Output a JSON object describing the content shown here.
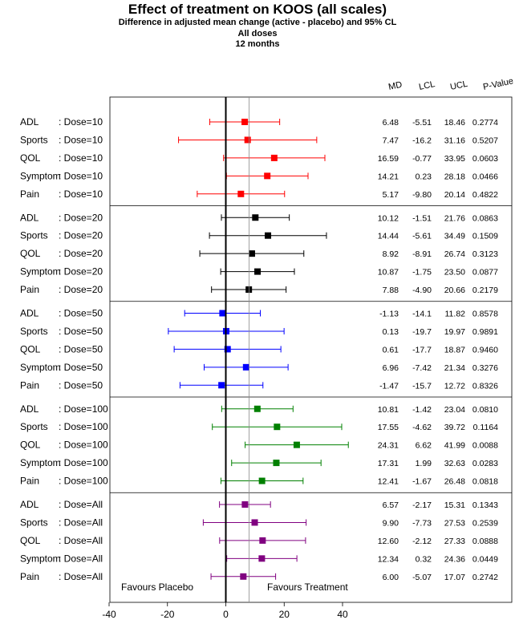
{
  "chart_data": {
    "type": "forest",
    "title": "Effect of treatment on KOOS (all scales)",
    "subtitle": "Difference in adjusted mean change (active - placebo) and 95% CL",
    "subtitle_line2": "All doses",
    "subtitle_line3": "12 months",
    "column_headers": [
      "MD",
      "LCL",
      "UCL",
      "P-Value"
    ],
    "xlim": [
      -40,
      40
    ],
    "x_ticks": [
      "-40",
      "-20",
      "0",
      "20",
      "40"
    ],
    "reference_line_x": 0,
    "overall_effect_line_x": 8,
    "annotation_left": "Favours Placebo",
    "annotation_right": "Favours Treatment",
    "groups": [
      {
        "dose_label": ": Dose=10",
        "color": "#ff0000",
        "rows": [
          {
            "scale": "ADL",
            "md": 6.48,
            "lcl": -5.51,
            "ucl": 18.46,
            "md_text": "6.48",
            "lcl_text": "-5.51",
            "ucl_text": "18.46",
            "p_text": "0.2774"
          },
          {
            "scale": "Sports",
            "md": 7.47,
            "lcl": -16.2,
            "ucl": 31.16,
            "md_text": "7.47",
            "lcl_text": "-16.2",
            "ucl_text": "31.16",
            "p_text": "0.5207"
          },
          {
            "scale": "QOL",
            "md": 16.59,
            "lcl": -0.77,
            "ucl": 33.95,
            "md_text": "16.59",
            "lcl_text": "-0.77",
            "ucl_text": "33.95",
            "p_text": "0.0603"
          },
          {
            "scale": "Symptom",
            "md": 14.21,
            "lcl": 0.23,
            "ucl": 28.18,
            "md_text": "14.21",
            "lcl_text": "0.23",
            "ucl_text": "28.18",
            "p_text": "0.0466"
          },
          {
            "scale": "Pain",
            "md": 5.17,
            "lcl": -9.8,
            "ucl": 20.14,
            "md_text": "5.17",
            "lcl_text": "-9.80",
            "ucl_text": "20.14",
            "p_text": "0.4822"
          }
        ]
      },
      {
        "dose_label": ": Dose=20",
        "color": "#000000",
        "rows": [
          {
            "scale": "ADL",
            "md": 10.12,
            "lcl": -1.51,
            "ucl": 21.76,
            "md_text": "10.12",
            "lcl_text": "-1.51",
            "ucl_text": "21.76",
            "p_text": "0.0863"
          },
          {
            "scale": "Sports",
            "md": 14.44,
            "lcl": -5.61,
            "ucl": 34.49,
            "md_text": "14.44",
            "lcl_text": "-5.61",
            "ucl_text": "34.49",
            "p_text": "0.1509"
          },
          {
            "scale": "QOL",
            "md": 8.92,
            "lcl": -8.91,
            "ucl": 26.74,
            "md_text": "8.92",
            "lcl_text": "-8.91",
            "ucl_text": "26.74",
            "p_text": "0.3123"
          },
          {
            "scale": "Symptom",
            "md": 10.87,
            "lcl": -1.75,
            "ucl": 23.5,
            "md_text": "10.87",
            "lcl_text": "-1.75",
            "ucl_text": "23.50",
            "p_text": "0.0877"
          },
          {
            "scale": "Pain",
            "md": 7.88,
            "lcl": -4.9,
            "ucl": 20.66,
            "md_text": "7.88",
            "lcl_text": "-4.90",
            "ucl_text": "20.66",
            "p_text": "0.2179"
          }
        ]
      },
      {
        "dose_label": ": Dose=50",
        "color": "#0000ff",
        "rows": [
          {
            "scale": "ADL",
            "md": -1.13,
            "lcl": -14.1,
            "ucl": 11.82,
            "md_text": "-1.13",
            "lcl_text": "-14.1",
            "ucl_text": "11.82",
            "p_text": "0.8578"
          },
          {
            "scale": "Sports",
            "md": 0.13,
            "lcl": -19.7,
            "ucl": 19.97,
            "md_text": "0.13",
            "lcl_text": "-19.7",
            "ucl_text": "19.97",
            "p_text": "0.9891"
          },
          {
            "scale": "QOL",
            "md": 0.61,
            "lcl": -17.7,
            "ucl": 18.87,
            "md_text": "0.61",
            "lcl_text": "-17.7",
            "ucl_text": "18.87",
            "p_text": "0.9460"
          },
          {
            "scale": "Symptom",
            "md": 6.96,
            "lcl": -7.42,
            "ucl": 21.34,
            "md_text": "6.96",
            "lcl_text": "-7.42",
            "ucl_text": "21.34",
            "p_text": "0.3276"
          },
          {
            "scale": "Pain",
            "md": -1.47,
            "lcl": -15.7,
            "ucl": 12.72,
            "md_text": "-1.47",
            "lcl_text": "-15.7",
            "ucl_text": "12.72",
            "p_text": "0.8326"
          }
        ]
      },
      {
        "dose_label": ": Dose=100",
        "color": "#008000",
        "rows": [
          {
            "scale": "ADL",
            "md": 10.81,
            "lcl": -1.42,
            "ucl": 23.04,
            "md_text": "10.81",
            "lcl_text": "-1.42",
            "ucl_text": "23.04",
            "p_text": "0.0810"
          },
          {
            "scale": "Sports",
            "md": 17.55,
            "lcl": -4.62,
            "ucl": 39.72,
            "md_text": "17.55",
            "lcl_text": "-4.62",
            "ucl_text": "39.72",
            "p_text": "0.1164"
          },
          {
            "scale": "QOL",
            "md": 24.31,
            "lcl": 6.62,
            "ucl": 41.99,
            "md_text": "24.31",
            "lcl_text": "6.62",
            "ucl_text": "41.99",
            "p_text": "0.0088"
          },
          {
            "scale": "Symptom",
            "md": 17.31,
            "lcl": 1.99,
            "ucl": 32.63,
            "md_text": "17.31",
            "lcl_text": "1.99",
            "ucl_text": "32.63",
            "p_text": "0.0283"
          },
          {
            "scale": "Pain",
            "md": 12.41,
            "lcl": -1.67,
            "ucl": 26.48,
            "md_text": "12.41",
            "lcl_text": "-1.67",
            "ucl_text": "26.48",
            "p_text": "0.0818"
          }
        ]
      },
      {
        "dose_label": ": Dose=All",
        "color": "#800080",
        "rows": [
          {
            "scale": "ADL",
            "md": 6.57,
            "lcl": -2.17,
            "ucl": 15.31,
            "md_text": "6.57",
            "lcl_text": "-2.17",
            "ucl_text": "15.31",
            "p_text": "0.1343"
          },
          {
            "scale": "Sports",
            "md": 9.9,
            "lcl": -7.73,
            "ucl": 27.53,
            "md_text": "9.90",
            "lcl_text": "-7.73",
            "ucl_text": "27.53",
            "p_text": "0.2539"
          },
          {
            "scale": "QOL",
            "md": 12.6,
            "lcl": -2.12,
            "ucl": 27.33,
            "md_text": "12.60",
            "lcl_text": "-2.12",
            "ucl_text": "27.33",
            "p_text": "0.0888"
          },
          {
            "scale": "Symptom",
            "md": 12.34,
            "lcl": 0.32,
            "ucl": 24.36,
            "md_text": "12.34",
            "lcl_text": "0.32",
            "ucl_text": "24.36",
            "p_text": "0.0449"
          },
          {
            "scale": "Pain",
            "md": 6.0,
            "lcl": -5.07,
            "ucl": 17.07,
            "md_text": "6.00",
            "lcl_text": "-5.07",
            "ucl_text": "17.07",
            "p_text": "0.2742"
          }
        ]
      }
    ]
  }
}
